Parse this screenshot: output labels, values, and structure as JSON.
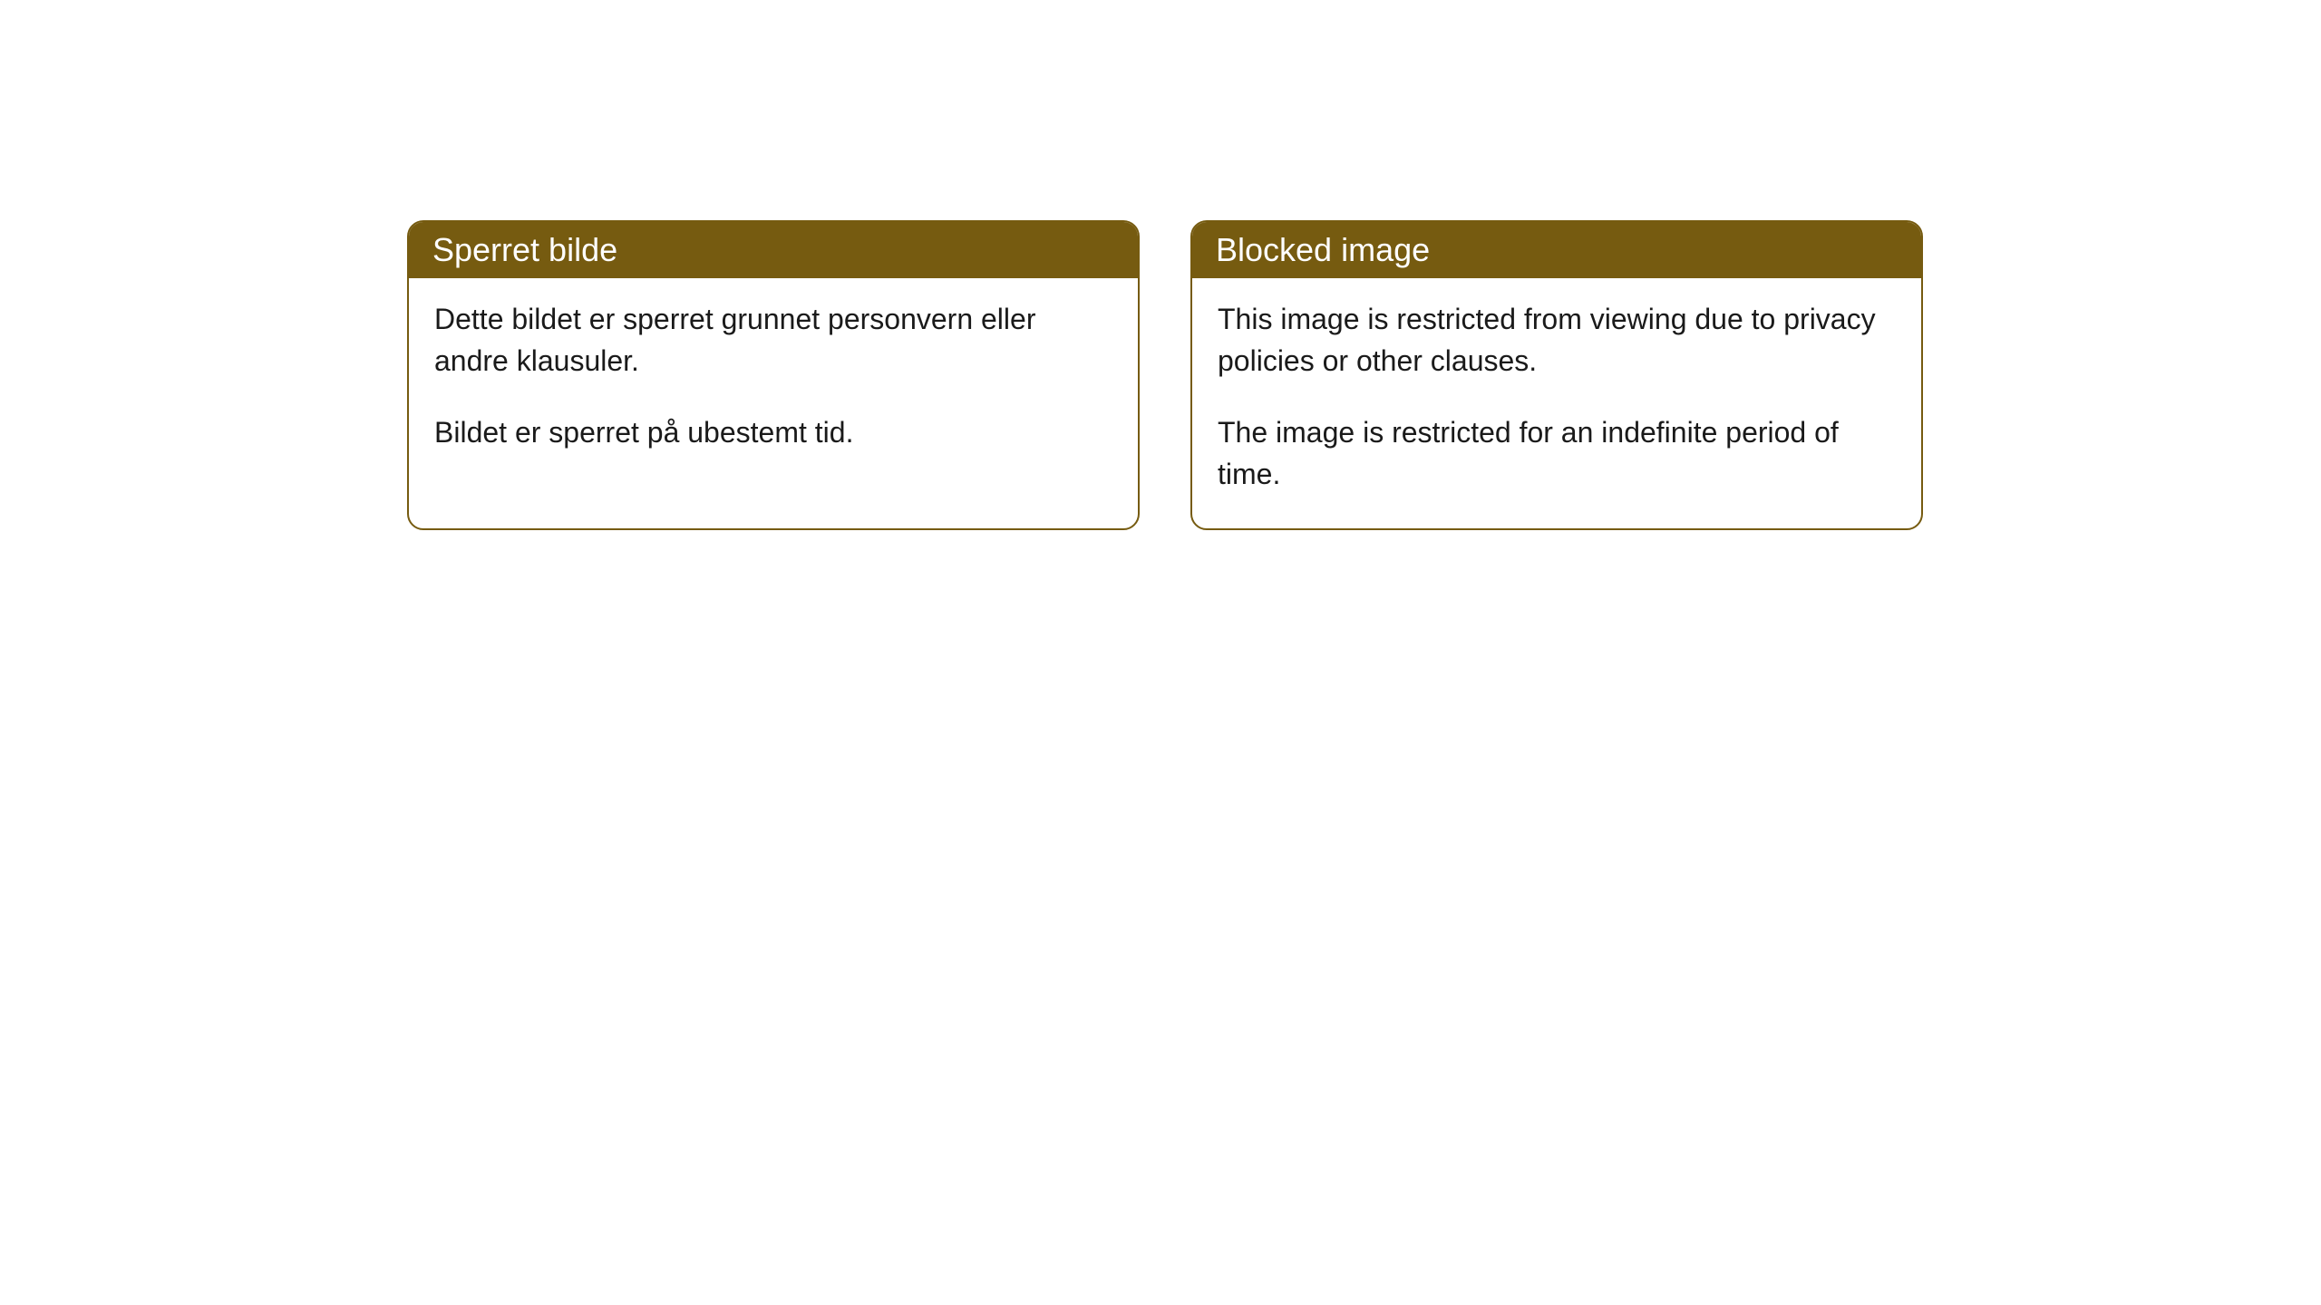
{
  "cards": [
    {
      "title": "Sperret bilde",
      "paragraph1": "Dette bildet er sperret grunnet personvern eller andre klausuler.",
      "paragraph2": "Bildet er sperret på ubestemt tid."
    },
    {
      "title": "Blocked image",
      "paragraph1": "This image is restricted from viewing due to privacy policies or other clauses.",
      "paragraph2": "The image is restricted for an indefinite period of time."
    }
  ],
  "styling": {
    "header_bg_color": "#765b10",
    "header_text_color": "#ffffff",
    "border_color": "#765b10",
    "border_radius": "18px",
    "card_bg_color": "#ffffff",
    "body_text_color": "#1a1a1a",
    "header_font_size": "36px",
    "body_font_size": "32px",
    "page_bg_color": "#ffffff"
  }
}
